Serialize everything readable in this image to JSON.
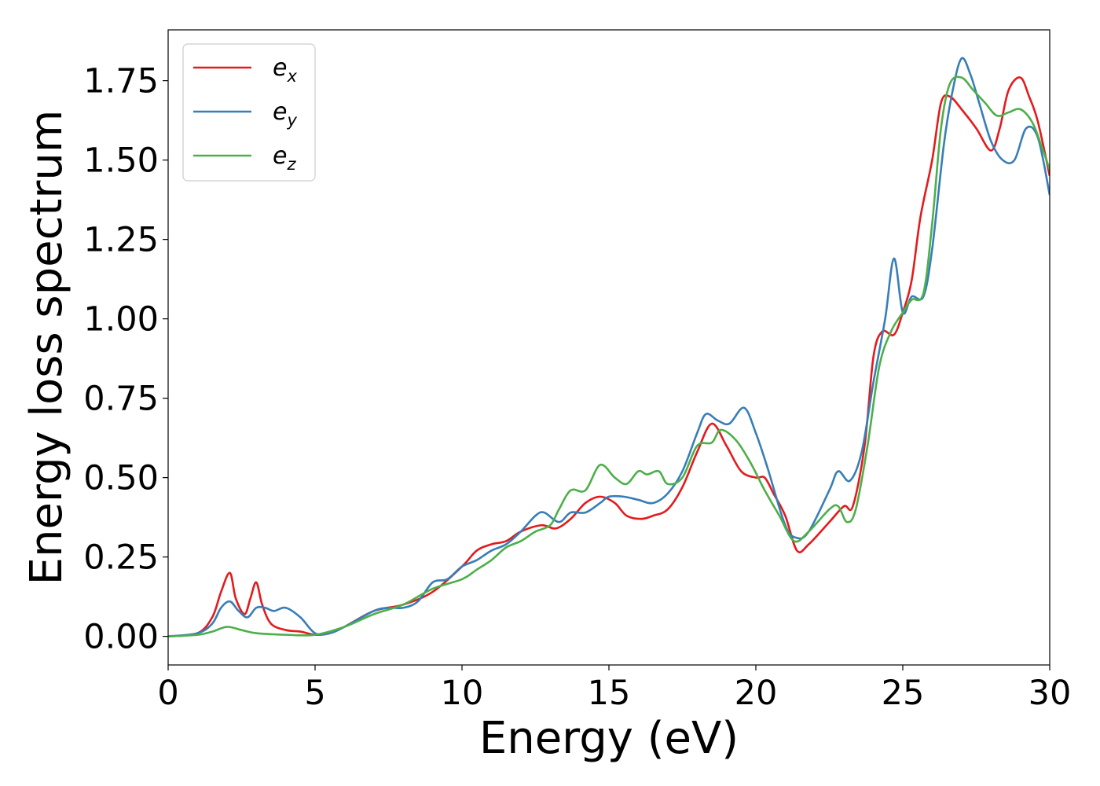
{
  "chart_data": {
    "type": "line",
    "title": "",
    "xlabel": "Energy (eV)",
    "ylabel": "Energy loss spectrum",
    "xlim": [
      0,
      30
    ],
    "ylim": [
      -0.09,
      1.91
    ],
    "xticks": [
      0,
      5,
      10,
      15,
      20,
      25,
      30
    ],
    "xtick_labels": [
      "0",
      "5",
      "10",
      "15",
      "20",
      "25",
      "30"
    ],
    "yticks": [
      0,
      0.25,
      0.5,
      0.75,
      1.0,
      1.25,
      1.5,
      1.75
    ],
    "ytick_labels": [
      "0.00",
      "0.25",
      "0.50",
      "0.75",
      "1.00",
      "1.25",
      "1.50",
      "1.75"
    ],
    "grid": false,
    "legend_position": "top-left",
    "series": [
      {
        "name": "e_x",
        "label_base": "e",
        "label_sub": "x",
        "color": "#e41a1c",
        "x": [
          0,
          1,
          1.5,
          1.8,
          2.1,
          2.3,
          2.6,
          2.8,
          3.0,
          3.2,
          3.5,
          4.0,
          4.5,
          5.0,
          5.5,
          6.0,
          7.0,
          8.0,
          9.0,
          10.0,
          10.5,
          11.0,
          11.5,
          12.0,
          12.7,
          13.2,
          13.7,
          14.2,
          14.7,
          15.2,
          15.6,
          16.1,
          16.5,
          17.0,
          17.5,
          18.0,
          18.5,
          19.0,
          19.5,
          20.0,
          20.3,
          20.6,
          21.0,
          21.4,
          21.8,
          22.5,
          23.0,
          23.3,
          23.7,
          24.0,
          24.3,
          24.7,
          25.0,
          25.3,
          25.6,
          26.0,
          26.3,
          26.6,
          27.0,
          27.5,
          28.0,
          28.3,
          28.6,
          29.0,
          29.3,
          29.6,
          30.0
        ],
        "y": [
          0,
          0.01,
          0.06,
          0.14,
          0.2,
          0.12,
          0.07,
          0.12,
          0.17,
          0.1,
          0.04,
          0.02,
          0.015,
          0.005,
          0.01,
          0.03,
          0.08,
          0.1,
          0.14,
          0.22,
          0.27,
          0.29,
          0.3,
          0.33,
          0.35,
          0.34,
          0.37,
          0.42,
          0.44,
          0.42,
          0.38,
          0.37,
          0.38,
          0.4,
          0.47,
          0.58,
          0.67,
          0.6,
          0.52,
          0.5,
          0.5,
          0.45,
          0.38,
          0.27,
          0.29,
          0.36,
          0.41,
          0.41,
          0.6,
          0.88,
          0.96,
          0.95,
          1.02,
          1.12,
          1.32,
          1.5,
          1.68,
          1.7,
          1.66,
          1.6,
          1.53,
          1.6,
          1.72,
          1.76,
          1.7,
          1.62,
          1.45
        ]
      },
      {
        "name": "e_y",
        "label_base": "e",
        "label_sub": "y",
        "color": "#377eb8",
        "x": [
          0,
          1,
          1.5,
          1.8,
          2.1,
          2.4,
          2.7,
          3.0,
          3.3,
          3.6,
          4.0,
          4.5,
          5.0,
          5.5,
          6.0,
          7.0,
          7.5,
          8.0,
          8.5,
          9.0,
          9.5,
          10.0,
          10.5,
          11.0,
          11.5,
          12.0,
          12.5,
          12.8,
          13.3,
          13.7,
          14.2,
          14.7,
          15.0,
          15.5,
          16.0,
          16.5,
          17.0,
          17.5,
          18.0,
          18.3,
          18.7,
          19.1,
          19.6,
          20.0,
          20.4,
          21.0,
          21.4,
          21.8,
          22.5,
          22.8,
          23.2,
          23.6,
          24.0,
          24.4,
          24.7,
          25.0,
          25.3,
          25.7,
          26.0,
          26.4,
          26.7,
          27.0,
          27.3,
          27.6,
          28.0,
          28.4,
          28.8,
          29.2,
          29.6,
          30.0
        ],
        "y": [
          0,
          0.01,
          0.04,
          0.09,
          0.11,
          0.08,
          0.06,
          0.09,
          0.09,
          0.08,
          0.09,
          0.06,
          0.01,
          0.01,
          0.03,
          0.08,
          0.09,
          0.09,
          0.11,
          0.17,
          0.18,
          0.22,
          0.24,
          0.27,
          0.29,
          0.33,
          0.38,
          0.39,
          0.36,
          0.39,
          0.39,
          0.42,
          0.44,
          0.44,
          0.43,
          0.42,
          0.45,
          0.52,
          0.64,
          0.7,
          0.68,
          0.67,
          0.72,
          0.64,
          0.53,
          0.35,
          0.31,
          0.33,
          0.46,
          0.52,
          0.49,
          0.58,
          0.8,
          1.0,
          1.19,
          1.02,
          1.07,
          1.07,
          1.22,
          1.55,
          1.72,
          1.82,
          1.77,
          1.68,
          1.56,
          1.5,
          1.5,
          1.6,
          1.57,
          1.39
        ]
      },
      {
        "name": "e_z",
        "label_base": "e",
        "label_sub": "z",
        "color": "#4daf4a",
        "x": [
          0,
          1,
          1.5,
          2.0,
          2.5,
          3.0,
          4.0,
          5.0,
          6.0,
          7.0,
          8.0,
          9.0,
          10.0,
          10.5,
          11.0,
          11.5,
          12.0,
          12.5,
          13.0,
          13.3,
          13.7,
          14.2,
          14.7,
          15.2,
          15.6,
          16.0,
          16.3,
          16.7,
          17.0,
          17.5,
          18.0,
          18.5,
          18.8,
          19.3,
          19.8,
          20.3,
          20.8,
          21.3,
          21.8,
          22.5,
          22.8,
          23.1,
          23.4,
          23.8,
          24.2,
          24.6,
          25.0,
          25.3,
          25.7,
          26.0,
          26.3,
          26.6,
          27.0,
          27.4,
          27.8,
          28.2,
          28.6,
          29.0,
          29.4,
          29.7,
          30.0
        ],
        "y": [
          0,
          0.005,
          0.015,
          0.03,
          0.02,
          0.01,
          0.005,
          0.005,
          0.03,
          0.07,
          0.1,
          0.15,
          0.18,
          0.21,
          0.24,
          0.28,
          0.3,
          0.33,
          0.35,
          0.4,
          0.46,
          0.46,
          0.54,
          0.5,
          0.48,
          0.52,
          0.51,
          0.52,
          0.48,
          0.5,
          0.6,
          0.61,
          0.65,
          0.62,
          0.55,
          0.46,
          0.38,
          0.3,
          0.33,
          0.4,
          0.41,
          0.36,
          0.4,
          0.6,
          0.85,
          0.96,
          1.02,
          1.06,
          1.08,
          1.3,
          1.6,
          1.74,
          1.76,
          1.72,
          1.68,
          1.64,
          1.65,
          1.66,
          1.62,
          1.55,
          1.47
        ]
      }
    ]
  }
}
